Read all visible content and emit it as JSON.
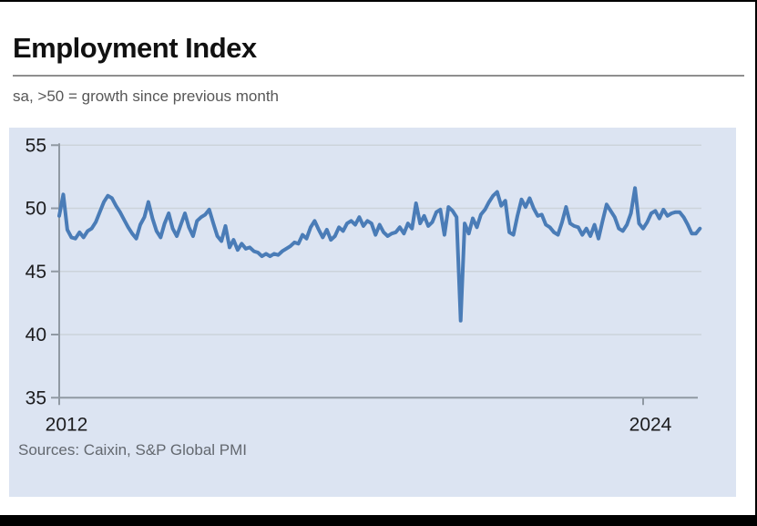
{
  "header": {
    "title": "Employment Index",
    "subtitle": "sa, >50 = growth since previous month"
  },
  "footer": {
    "sources": "Sources: Caixin, S&P Global PMI"
  },
  "colors": {
    "line": "#4a7cb7",
    "plot_background": "#dce4f2",
    "gridline": "#ccd3da",
    "axis": "#9099a3",
    "tick_label": "#1c1c1e",
    "subtitle_text": "#575757",
    "sources_text": "#63686f",
    "frame": "#000000"
  },
  "chart_data": {
    "type": "line",
    "title": "Employment Index",
    "subtitle": "sa, >50 = growth since previous month",
    "sources": "Sources: Caixin, S&P Global PMI",
    "frequency": "monthly",
    "x_start": {
      "year": 2012,
      "month": 1
    },
    "x_end": {
      "year": 2025,
      "month": 3
    },
    "x_tick_labels": [
      "2012",
      "2024"
    ],
    "x_tick_years": [
      2012,
      2024
    ],
    "y_ticks": [
      55,
      50,
      45,
      40,
      35
    ],
    "ylim": [
      35,
      55.8
    ],
    "grid": true,
    "legend": "none",
    "line_color": "#4a7cb7",
    "plot_bg": "#dce4f2",
    "values": [
      49.4,
      51.1,
      48.3,
      47.7,
      47.6,
      48.1,
      47.7,
      48.2,
      48.4,
      48.9,
      49.7,
      50.5,
      51.0,
      50.8,
      50.2,
      49.7,
      49.1,
      48.5,
      48.0,
      47.6,
      48.7,
      49.3,
      50.5,
      49.2,
      48.2,
      47.7,
      48.8,
      49.6,
      48.4,
      47.8,
      48.7,
      49.6,
      48.5,
      47.8,
      49.0,
      49.3,
      49.5,
      49.9,
      48.8,
      47.8,
      47.4,
      48.6,
      46.9,
      47.5,
      46.7,
      47.2,
      46.8,
      46.9,
      46.6,
      46.5,
      46.2,
      46.4,
      46.2,
      46.4,
      46.3,
      46.6,
      46.8,
      47.0,
      47.3,
      47.2,
      47.9,
      47.6,
      48.5,
      49.0,
      48.3,
      47.7,
      48.3,
      47.5,
      47.8,
      48.5,
      48.2,
      48.8,
      49.0,
      48.7,
      49.3,
      48.6,
      49.0,
      48.8,
      47.9,
      48.7,
      48.1,
      47.8,
      48.0,
      48.1,
      48.5,
      48.0,
      48.8,
      48.4,
      50.4,
      48.8,
      49.4,
      48.6,
      48.9,
      49.7,
      49.9,
      47.9,
      50.1,
      49.8,
      49.3,
      41.1,
      48.8,
      48.0,
      49.2,
      48.5,
      49.5,
      49.9,
      50.5,
      51.0,
      51.3,
      50.2,
      50.6,
      48.1,
      47.9,
      49.4,
      50.7,
      50.1,
      50.8,
      50.0,
      49.4,
      49.5,
      48.7,
      48.5,
      48.1,
      47.9,
      48.9,
      50.1,
      48.8,
      48.6,
      48.5,
      47.9,
      48.4,
      47.8,
      48.7,
      47.6,
      49.0,
      50.3,
      49.8,
      49.3,
      48.4,
      48.2,
      48.7,
      49.6,
      51.6,
      48.8,
      48.4,
      48.9,
      49.6,
      49.8,
      49.2,
      49.9,
      49.4,
      49.6,
      49.7,
      49.7,
      49.3,
      48.7,
      48.0,
      48.0,
      48.4
    ]
  }
}
